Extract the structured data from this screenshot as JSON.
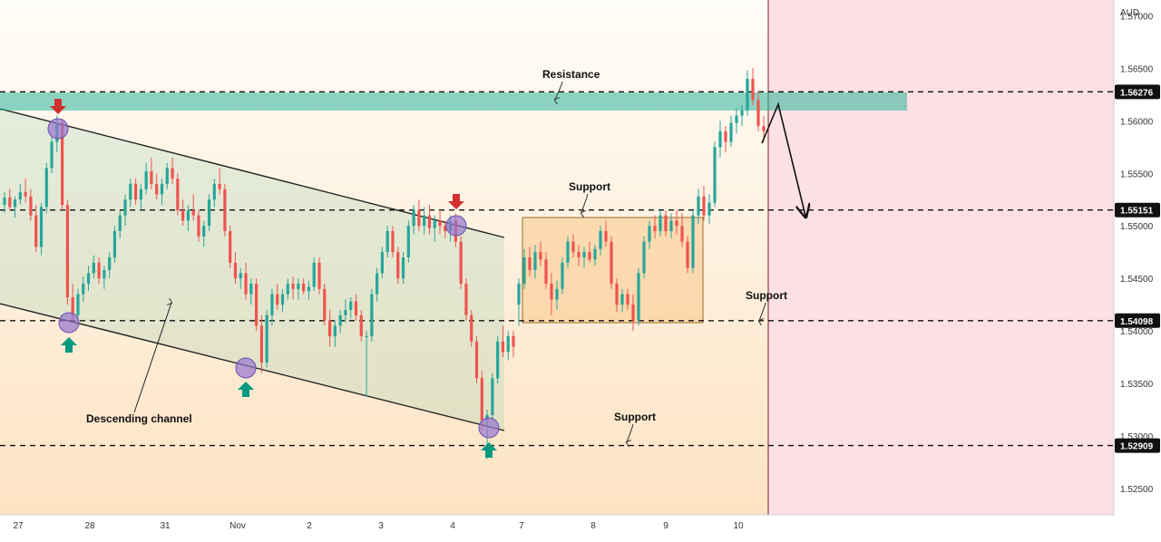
{
  "chart_data": {
    "type": "candlestick",
    "currency_label": "AUD",
    "y_axis": {
      "range": [
        1.5225,
        1.5715
      ],
      "ticks": [
        {
          "value": 1.57,
          "label": "1.57000"
        },
        {
          "value": 1.565,
          "label": "1.56500"
        },
        {
          "value": 1.56,
          "label": "1.56000"
        },
        {
          "value": 1.555,
          "label": "1.55500"
        },
        {
          "value": 1.55,
          "label": "1.55000"
        },
        {
          "value": 1.545,
          "label": "1.54500"
        },
        {
          "value": 1.54,
          "label": "1.54000"
        },
        {
          "value": 1.535,
          "label": "1.53500"
        },
        {
          "value": 1.53,
          "label": "1.53000"
        },
        {
          "value": 1.525,
          "label": "1.52500"
        }
      ]
    },
    "x_axis": {
      "labels": [
        "27",
        "28",
        "31",
        "Nov",
        "2",
        "3",
        "4",
        "7",
        "8",
        "9",
        "10"
      ]
    },
    "levels": [
      {
        "value": 1.56276,
        "label": "1.56276",
        "kind": "resistance"
      },
      {
        "value": 1.55151,
        "label": "1.55151",
        "kind": "support"
      },
      {
        "value": 1.54098,
        "label": "1.54098",
        "kind": "support"
      },
      {
        "value": 1.52909,
        "label": "1.52909",
        "kind": "support"
      }
    ],
    "annotations": {
      "resistance": "Resistance",
      "support_range": "Support",
      "support_mid": "Support",
      "support_low": "Support",
      "channel": "Descending channel"
    },
    "colors": {
      "up": "#26a69a",
      "down": "#ef5350",
      "resistance_zone": "#2bb59a",
      "range_box": "#f9c98a",
      "pivot": "#9575cd",
      "arrow_up": "#089981",
      "arrow_down": "#d32f2f"
    },
    "candles": [
      [
        1.552,
        1.5532,
        1.5512,
        1.5527
      ],
      [
        1.5527,
        1.5535,
        1.5515,
        1.5518
      ],
      [
        1.5518,
        1.5528,
        1.5508,
        1.5525
      ],
      [
        1.5525,
        1.554,
        1.552,
        1.5532
      ],
      [
        1.5532,
        1.5545,
        1.5522,
        1.5528
      ],
      [
        1.5528,
        1.5535,
        1.5505,
        1.551
      ],
      [
        1.551,
        1.552,
        1.5475,
        1.548
      ],
      [
        1.548,
        1.5522,
        1.5472,
        1.5518
      ],
      [
        1.5518,
        1.556,
        1.5512,
        1.5555
      ],
      [
        1.5555,
        1.5585,
        1.555,
        1.558
      ],
      [
        1.558,
        1.5605,
        1.557,
        1.5598
      ],
      [
        1.5598,
        1.5602,
        1.5515,
        1.552
      ],
      [
        1.552,
        1.5525,
        1.5425,
        1.5432
      ],
      [
        1.5432,
        1.5445,
        1.541,
        1.5415
      ],
      [
        1.5415,
        1.544,
        1.541,
        1.5435
      ],
      [
        1.5435,
        1.5452,
        1.5428,
        1.5445
      ],
      [
        1.5445,
        1.5462,
        1.5438,
        1.5455
      ],
      [
        1.5455,
        1.5472,
        1.545,
        1.5465
      ],
      [
        1.5465,
        1.547,
        1.5445,
        1.545
      ],
      [
        1.545,
        1.5462,
        1.544,
        1.5458
      ],
      [
        1.5458,
        1.5475,
        1.545,
        1.547
      ],
      [
        1.547,
        1.55,
        1.5465,
        1.5495
      ],
      [
        1.5495,
        1.5515,
        1.5488,
        1.551
      ],
      [
        1.551,
        1.553,
        1.55,
        1.5525
      ],
      [
        1.5525,
        1.5545,
        1.5518,
        1.554
      ],
      [
        1.554,
        1.5545,
        1.552,
        1.5525
      ],
      [
        1.5525,
        1.554,
        1.5515,
        1.5535
      ],
      [
        1.5535,
        1.556,
        1.553,
        1.5552
      ],
      [
        1.5552,
        1.5565,
        1.5535,
        1.554
      ],
      [
        1.554,
        1.555,
        1.5525,
        1.553
      ],
      [
        1.553,
        1.5545,
        1.552,
        1.554
      ],
      [
        1.554,
        1.556,
        1.5535,
        1.5555
      ],
      [
        1.5555,
        1.5565,
        1.554,
        1.5545
      ],
      [
        1.5545,
        1.555,
        1.551,
        1.5515
      ],
      [
        1.5515,
        1.5525,
        1.55,
        1.5505
      ],
      [
        1.5505,
        1.552,
        1.5495,
        1.5515
      ],
      [
        1.5515,
        1.553,
        1.5505,
        1.551
      ],
      [
        1.551,
        1.5515,
        1.5485,
        1.549
      ],
      [
        1.549,
        1.5505,
        1.548,
        1.55
      ],
      [
        1.55,
        1.553,
        1.5495,
        1.5525
      ],
      [
        1.5525,
        1.5545,
        1.5518,
        1.554
      ],
      [
        1.554,
        1.5555,
        1.553,
        1.5535
      ],
      [
        1.5535,
        1.554,
        1.549,
        1.5495
      ],
      [
        1.5495,
        1.55,
        1.546,
        1.5465
      ],
      [
        1.5465,
        1.5475,
        1.5445,
        1.545
      ],
      [
        1.545,
        1.546,
        1.544,
        1.5455
      ],
      [
        1.5455,
        1.5465,
        1.543,
        1.5435
      ],
      [
        1.5435,
        1.545,
        1.5425,
        1.5445
      ],
      [
        1.5445,
        1.545,
        1.54,
        1.5405
      ],
      [
        1.5405,
        1.5415,
        1.536,
        1.537
      ],
      [
        1.537,
        1.542,
        1.5365,
        1.5415
      ],
      [
        1.5415,
        1.544,
        1.5405,
        1.5435
      ],
      [
        1.5435,
        1.5445,
        1.542,
        1.5425
      ],
      [
        1.5425,
        1.544,
        1.5418,
        1.5435
      ],
      [
        1.5435,
        1.545,
        1.543,
        1.5445
      ],
      [
        1.5445,
        1.5452,
        1.543,
        1.544
      ],
      [
        1.544,
        1.545,
        1.543,
        1.5445
      ],
      [
        1.5445,
        1.545,
        1.5435,
        1.5438
      ],
      [
        1.5438,
        1.5448,
        1.543,
        1.5442
      ],
      [
        1.5442,
        1.547,
        1.5438,
        1.5465
      ],
      [
        1.5465,
        1.547,
        1.5435,
        1.544
      ],
      [
        1.544,
        1.5445,
        1.5405,
        1.541
      ],
      [
        1.541,
        1.542,
        1.5385,
        1.5395
      ],
      [
        1.5395,
        1.541,
        1.5385,
        1.5405
      ],
      [
        1.5405,
        1.542,
        1.5398,
        1.5415
      ],
      [
        1.5415,
        1.543,
        1.5408,
        1.542
      ],
      [
        1.542,
        1.5432,
        1.5412,
        1.5428
      ],
      [
        1.5428,
        1.5435,
        1.541,
        1.5415
      ],
      [
        1.5415,
        1.542,
        1.539,
        1.5395
      ],
      [
        1.5395,
        1.54,
        1.5338,
        1.5395
      ],
      [
        1.5395,
        1.544,
        1.539,
        1.5435
      ],
      [
        1.5435,
        1.546,
        1.5428,
        1.5455
      ],
      [
        1.5455,
        1.548,
        1.545,
        1.5475
      ],
      [
        1.5475,
        1.55,
        1.547,
        1.5495
      ],
      [
        1.5495,
        1.55,
        1.547,
        1.5475
      ],
      [
        1.5475,
        1.548,
        1.5445,
        1.545
      ],
      [
        1.545,
        1.5475,
        1.5445,
        1.547
      ],
      [
        1.547,
        1.5505,
        1.5465,
        1.55
      ],
      [
        1.55,
        1.552,
        1.5492,
        1.5515
      ],
      [
        1.5515,
        1.5525,
        1.5495,
        1.55
      ],
      [
        1.55,
        1.5518,
        1.5492,
        1.551
      ],
      [
        1.551,
        1.552,
        1.5492,
        1.5498
      ],
      [
        1.5498,
        1.551,
        1.5485,
        1.5505
      ],
      [
        1.5505,
        1.5515,
        1.5492,
        1.55
      ],
      [
        1.55,
        1.5505,
        1.5488,
        1.5495
      ],
      [
        1.5495,
        1.551,
        1.5485,
        1.5505
      ],
      [
        1.5505,
        1.5512,
        1.548,
        1.5485
      ],
      [
        1.5485,
        1.549,
        1.544,
        1.5445
      ],
      [
        1.5445,
        1.545,
        1.541,
        1.5415
      ],
      [
        1.5415,
        1.542,
        1.5385,
        1.539
      ],
      [
        1.539,
        1.5395,
        1.535,
        1.5355
      ],
      [
        1.5355,
        1.5362,
        1.5305,
        1.5315
      ],
      [
        1.5315,
        1.5325,
        1.5278,
        1.532
      ],
      [
        1.532,
        1.536,
        1.5315,
        1.5355
      ],
      [
        1.5355,
        1.5395,
        1.535,
        1.539
      ],
      [
        1.539,
        1.5405,
        1.5375,
        1.538
      ],
      [
        1.538,
        1.54,
        1.5372,
        1.5395
      ],
      [
        1.5395,
        1.54,
        1.5375,
        1.5385
      ],
      [
        1.5425,
        1.545,
        1.5405,
        1.5445
      ],
      [
        1.5445,
        1.5478,
        1.544,
        1.547
      ],
      [
        1.547,
        1.548,
        1.5452,
        1.5458
      ],
      [
        1.5458,
        1.5482,
        1.545,
        1.5475
      ],
      [
        1.5475,
        1.5485,
        1.5462,
        1.5468
      ],
      [
        1.5468,
        1.5475,
        1.544,
        1.5445
      ],
      [
        1.5445,
        1.5455,
        1.5415,
        1.543
      ],
      [
        1.543,
        1.5448,
        1.542,
        1.544
      ],
      [
        1.544,
        1.547,
        1.5435,
        1.5465
      ],
      [
        1.5465,
        1.549,
        1.546,
        1.5485
      ],
      [
        1.5485,
        1.5492,
        1.547,
        1.5475
      ],
      [
        1.5475,
        1.5482,
        1.5462,
        1.547
      ],
      [
        1.547,
        1.548,
        1.546,
        1.5475
      ],
      [
        1.5475,
        1.5485,
        1.5465,
        1.5468
      ],
      [
        1.5468,
        1.5482,
        1.5462,
        1.5478
      ],
      [
        1.5478,
        1.55,
        1.5472,
        1.5495
      ],
      [
        1.5495,
        1.5505,
        1.548,
        1.5485
      ],
      [
        1.5485,
        1.549,
        1.544,
        1.5445
      ],
      [
        1.5445,
        1.545,
        1.5418,
        1.5425
      ],
      [
        1.5425,
        1.544,
        1.5418,
        1.5435
      ],
      [
        1.5435,
        1.544,
        1.542,
        1.5425
      ],
      [
        1.5425,
        1.5435,
        1.54,
        1.541
      ],
      [
        1.541,
        1.546,
        1.5405,
        1.5455
      ],
      [
        1.5455,
        1.549,
        1.545,
        1.5485
      ],
      [
        1.5485,
        1.5505,
        1.5478,
        1.55
      ],
      [
        1.55,
        1.551,
        1.5488,
        1.5495
      ],
      [
        1.5495,
        1.5515,
        1.549,
        1.551
      ],
      [
        1.551,
        1.5515,
        1.549,
        1.5495
      ],
      [
        1.5495,
        1.5512,
        1.5488,
        1.5505
      ],
      [
        1.5505,
        1.5515,
        1.5492,
        1.55
      ],
      [
        1.55,
        1.5512,
        1.548,
        1.5485
      ],
      [
        1.5485,
        1.549,
        1.5455,
        1.546
      ],
      [
        1.546,
        1.5515,
        1.5455,
        1.551
      ],
      [
        1.551,
        1.5535,
        1.5502,
        1.5528
      ],
      [
        1.5528,
        1.5538,
        1.5505,
        1.551
      ],
      [
        1.551,
        1.553,
        1.5502,
        1.5522
      ],
      [
        1.5522,
        1.558,
        1.5518,
        1.5575
      ],
      [
        1.5575,
        1.56,
        1.5565,
        1.559
      ],
      [
        1.559,
        1.5595,
        1.557,
        1.558
      ],
      [
        1.558,
        1.5605,
        1.5575,
        1.5598
      ],
      [
        1.5598,
        1.5612,
        1.5588,
        1.5605
      ],
      [
        1.5605,
        1.5615,
        1.5595,
        1.561
      ],
      [
        1.561,
        1.5648,
        1.5605,
        1.564
      ],
      [
        1.564,
        1.565,
        1.5615,
        1.562
      ],
      [
        1.562,
        1.5628,
        1.559,
        1.5595
      ],
      [
        1.5595,
        1.5605,
        1.558,
        1.559
      ]
    ]
  }
}
